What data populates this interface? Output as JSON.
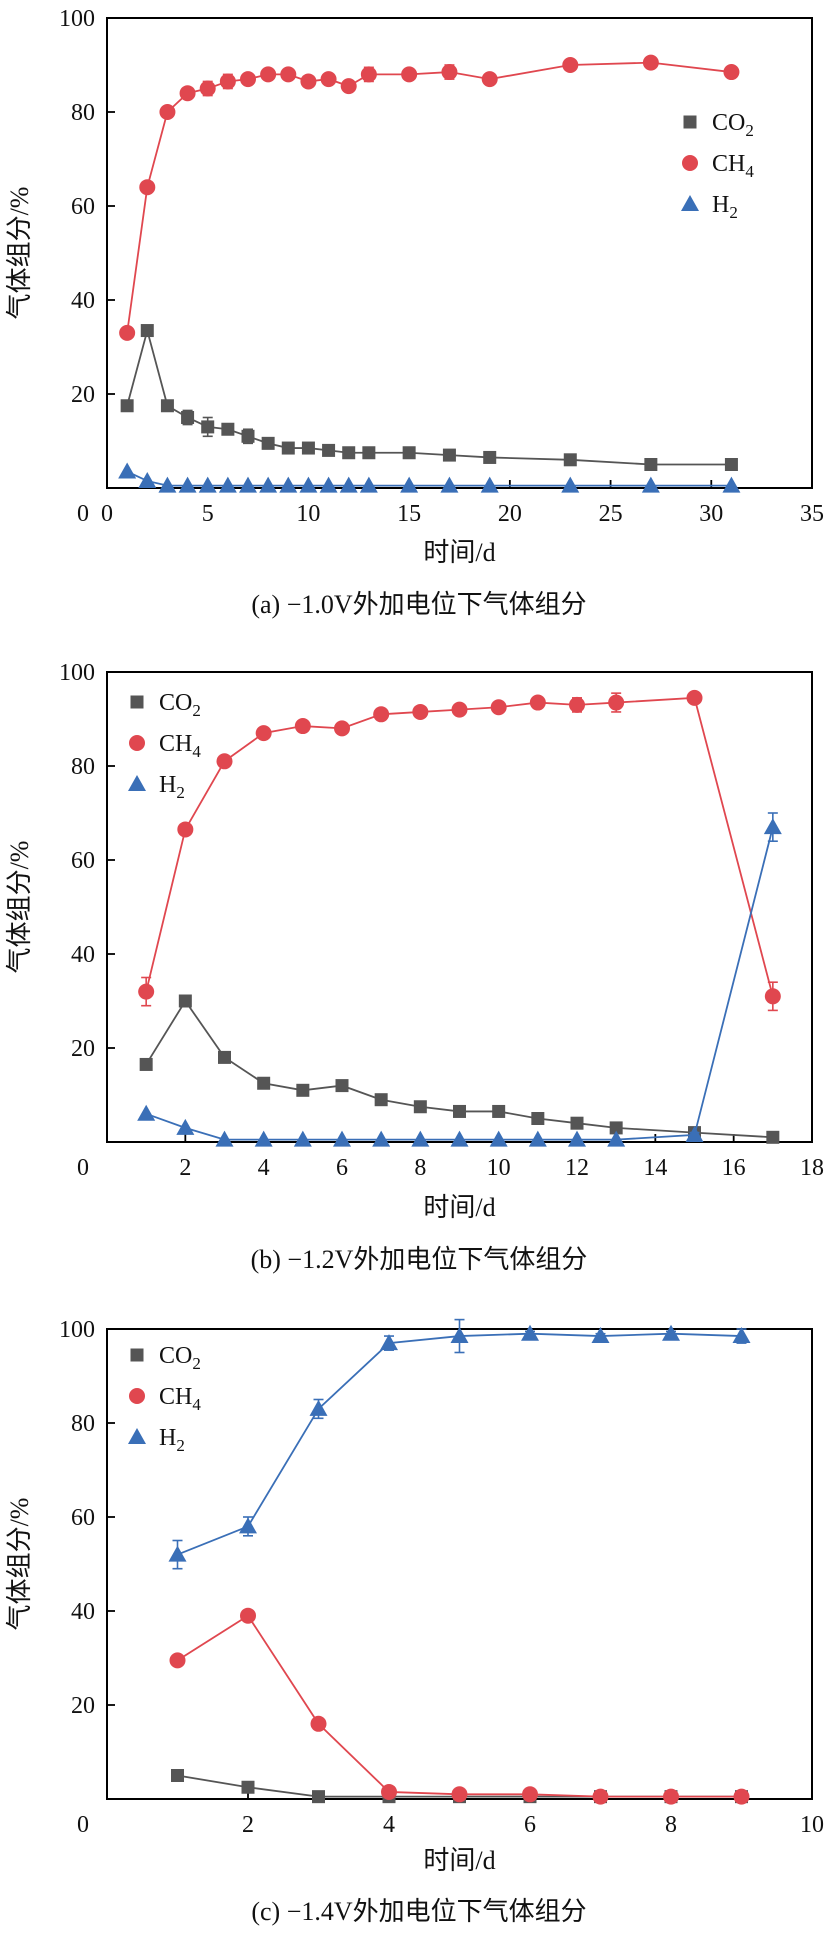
{
  "chart_data": [
    {
      "type": "line",
      "caption": "(a) −1.0V外加电位下气体组分",
      "xlabel": "时间/d",
      "ylabel": "气体组分/%",
      "xlim": [
        0,
        35
      ],
      "ylim": [
        0,
        100
      ],
      "xticks": [
        0,
        5,
        10,
        15,
        20,
        25,
        30,
        35
      ],
      "yticks": [
        20,
        40,
        60,
        80,
        100
      ],
      "show_origin_label": true,
      "legend_position": "right",
      "series": [
        {
          "name": "CO2",
          "label_base": "CO",
          "label_sub": "2",
          "marker": "square",
          "color": "#555555",
          "x": [
            1,
            2,
            3,
            4,
            5,
            6,
            7,
            8,
            9,
            10,
            11,
            12,
            13,
            15,
            17,
            19,
            23,
            27,
            31
          ],
          "y": [
            17.5,
            33.5,
            17.5,
            15,
            13,
            12.5,
            11,
            9.5,
            8.5,
            8.5,
            8,
            7.5,
            7.5,
            7.5,
            7,
            6.5,
            6,
            5,
            5
          ],
          "err": [
            0,
            0,
            0,
            1.5,
            2,
            1,
            1.5,
            0.5,
            0.5,
            0.5,
            0.5,
            0.5,
            0.5,
            0,
            0,
            0,
            0,
            0,
            0
          ]
        },
        {
          "name": "CH4",
          "label_base": "CH",
          "label_sub": "4",
          "marker": "circle",
          "color": "#e0474f",
          "x": [
            1,
            2,
            3,
            4,
            5,
            6,
            7,
            8,
            9,
            10,
            11,
            12,
            13,
            15,
            17,
            19,
            23,
            27,
            31
          ],
          "y": [
            33,
            64,
            80,
            84,
            85,
            86.5,
            87,
            88,
            88,
            86.5,
            87,
            85.5,
            88,
            88,
            88.5,
            87,
            90,
            90.5,
            88.5
          ],
          "err": [
            0,
            0,
            0,
            0.5,
            1.5,
            1.5,
            0.5,
            0.5,
            0.5,
            1,
            0.5,
            1,
            1.5,
            1,
            1.5,
            0.5,
            1,
            0.5,
            0.5
          ]
        },
        {
          "name": "H2",
          "label_base": "H",
          "label_sub": "2",
          "marker": "triangle",
          "color": "#3a6fb7",
          "x": [
            1,
            2,
            3,
            4,
            5,
            6,
            7,
            8,
            9,
            10,
            11,
            12,
            13,
            15,
            17,
            19,
            23,
            27,
            31
          ],
          "y": [
            3.5,
            1.5,
            0.5,
            0.5,
            0.5,
            0.5,
            0.5,
            0.5,
            0.5,
            0.5,
            0.5,
            0.5,
            0.5,
            0.5,
            0.5,
            0.5,
            0.5,
            0.5,
            0.5
          ],
          "err": [
            0,
            0,
            0,
            0,
            0,
            0,
            0,
            0,
            0,
            0,
            0,
            0,
            0,
            0,
            0,
            0,
            0,
            0,
            0
          ]
        }
      ]
    },
    {
      "type": "line",
      "caption": "(b) −1.2V外加电位下气体组分",
      "xlabel": "时间/d",
      "ylabel": "气体组分/%",
      "xlim": [
        0,
        18
      ],
      "ylim": [
        0,
        100
      ],
      "xticks": [
        2,
        4,
        6,
        8,
        10,
        12,
        14,
        16,
        18
      ],
      "yticks": [
        20,
        40,
        60,
        80,
        100
      ],
      "show_origin_label": true,
      "legend_position": "top-left",
      "series": [
        {
          "name": "CO2",
          "label_base": "CO",
          "label_sub": "2",
          "marker": "square",
          "color": "#555555",
          "x": [
            1,
            2,
            3,
            4,
            5,
            6,
            7,
            8,
            9,
            10,
            11,
            12,
            13,
            15,
            17
          ],
          "y": [
            16.5,
            30,
            18,
            12.5,
            11,
            12,
            9,
            7.5,
            6.5,
            6.5,
            5,
            4,
            3,
            2,
            1
          ],
          "err": [
            0.5,
            0.5,
            0.5,
            0.5,
            0.5,
            0.5,
            0.5,
            0.5,
            0.5,
            0.5,
            0.5,
            0.5,
            0.5,
            0.5,
            0.3
          ]
        },
        {
          "name": "CH4",
          "label_base": "CH",
          "label_sub": "4",
          "marker": "circle",
          "color": "#e0474f",
          "x": [
            1,
            2,
            3,
            4,
            5,
            6,
            7,
            8,
            9,
            10,
            11,
            12,
            13,
            15,
            17
          ],
          "y": [
            32,
            66.5,
            81,
            87,
            88.5,
            88,
            91,
            91.5,
            92,
            92.5,
            93.5,
            93,
            93.5,
            94.5,
            31
          ],
          "err": [
            3,
            1,
            1,
            0.5,
            0.5,
            0.5,
            1,
            1,
            0.5,
            0.5,
            1,
            1.5,
            2,
            0.5,
            3
          ]
        },
        {
          "name": "H2",
          "label_base": "H",
          "label_sub": "2",
          "marker": "triangle",
          "color": "#3a6fb7",
          "x": [
            1,
            2,
            3,
            4,
            5,
            6,
            7,
            8,
            9,
            10,
            11,
            12,
            13,
            15,
            17
          ],
          "y": [
            6,
            3,
            0.5,
            0.5,
            0.5,
            0.5,
            0.5,
            0.5,
            0.5,
            0.5,
            0.5,
            0.5,
            0.5,
            1.5,
            67
          ],
          "err": [
            0,
            0,
            0,
            0,
            0,
            0,
            0,
            0,
            0,
            0,
            0,
            0,
            0,
            0.5,
            3
          ]
        }
      ]
    },
    {
      "type": "line",
      "caption": "(c) −1.4V外加电位下气体组分",
      "xlabel": "时间/d",
      "ylabel": "气体组分/%",
      "xlim": [
        0,
        10
      ],
      "ylim": [
        0,
        100
      ],
      "xticks": [
        2,
        4,
        6,
        8,
        10
      ],
      "yticks": [
        20,
        40,
        60,
        80,
        100
      ],
      "show_origin_label": true,
      "legend_position": "top-left",
      "series": [
        {
          "name": "CO2",
          "label_base": "CO",
          "label_sub": "2",
          "marker": "square",
          "color": "#555555",
          "x": [
            1,
            2,
            3,
            4,
            5,
            6,
            7,
            8,
            9
          ],
          "y": [
            5,
            2.5,
            0.5,
            0.5,
            0.5,
            0.5,
            0.5,
            0.5,
            0.5
          ],
          "err": [
            0,
            0,
            0,
            0,
            0,
            0,
            0,
            0,
            0
          ]
        },
        {
          "name": "CH4",
          "label_base": "CH",
          "label_sub": "4",
          "marker": "circle",
          "color": "#e0474f",
          "x": [
            1,
            2,
            3,
            4,
            5,
            6,
            7,
            8,
            9
          ],
          "y": [
            29.5,
            39,
            16,
            1.5,
            1,
            1,
            0.5,
            0.5,
            0.5
          ],
          "err": [
            0.5,
            0.5,
            0.5,
            0.5,
            0.3,
            0.3,
            0.3,
            0.3,
            0.3
          ]
        },
        {
          "name": "H2",
          "label_base": "H",
          "label_sub": "2",
          "marker": "triangle",
          "color": "#3a6fb7",
          "x": [
            1,
            2,
            3,
            4,
            5,
            6,
            7,
            8,
            9
          ],
          "y": [
            52,
            58,
            83,
            97,
            98.5,
            99,
            98.5,
            99,
            98.5
          ],
          "err": [
            3,
            2,
            2,
            1.5,
            3.5,
            0.5,
            0.5,
            0.5,
            1.5
          ]
        }
      ]
    }
  ]
}
